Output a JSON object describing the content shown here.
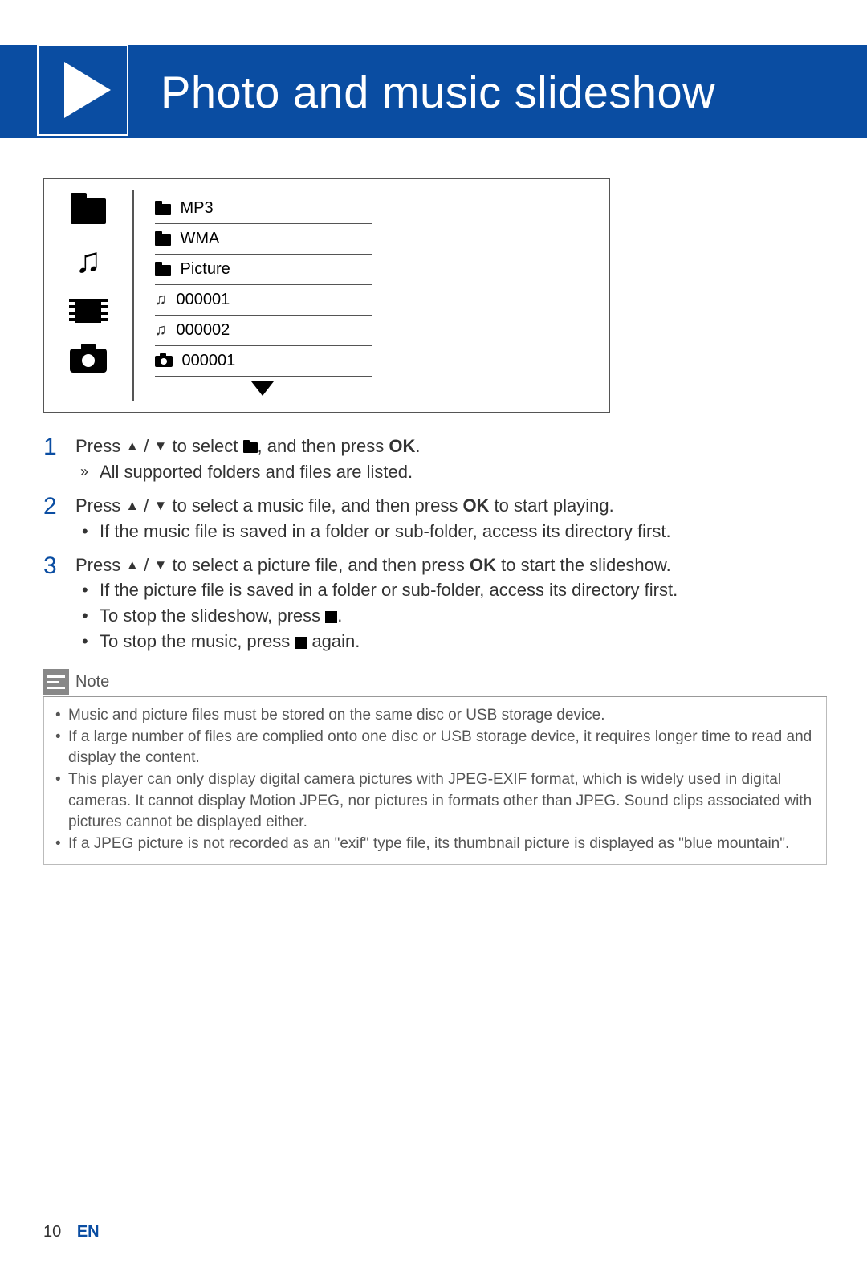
{
  "header": {
    "title": "Photo and music slideshow"
  },
  "diagram": {
    "rows": [
      {
        "icon": "folder",
        "label": "MP3"
      },
      {
        "icon": "folder",
        "label": "WMA"
      },
      {
        "icon": "folder",
        "label": "Picture"
      },
      {
        "icon": "music",
        "label": "000001"
      },
      {
        "icon": "music",
        "label": "000002"
      },
      {
        "icon": "camera",
        "label": "000001"
      }
    ]
  },
  "steps": {
    "s1": {
      "num": "1",
      "line_a": "Press ",
      "line_b": " / ",
      "line_c": " to select ",
      "line_d": ", and then press ",
      "ok": "OK",
      "line_e": ".",
      "sub1": "All supported folders and files are listed."
    },
    "s2": {
      "num": "2",
      "line_a": "Press ",
      "line_b": " / ",
      "line_c": " to select a music file, and then press ",
      "ok": "OK",
      "line_d": " to start playing.",
      "sub1": "If the music file is saved in a folder or sub-folder, access its directory first."
    },
    "s3": {
      "num": "3",
      "line_a": "Press ",
      "line_b": " / ",
      "line_c": " to select a picture file, and then press ",
      "ok": "OK",
      "line_d": " to start the slideshow.",
      "sub1": "If the picture file is saved in a folder or sub-folder, access its directory first.",
      "sub2a": "To stop the slideshow, press ",
      "sub2b": ".",
      "sub3a": "To stop the music, press ",
      "sub3b": " again."
    }
  },
  "note": {
    "label": "Note",
    "n1": "Music and picture files must be stored on the same disc or USB storage device.",
    "n2": "If a large number of files are complied onto one disc or USB storage device, it requires longer time to read and display the content.",
    "n3": "This player can only display digital camera pictures with JPEG-EXIF format, which is widely used in digital cameras. It cannot display Motion JPEG, nor pictures in formats other than JPEG. Sound clips associated with pictures cannot be displayed either.",
    "n4": "If a JPEG picture is not recorded as an \"exif\" type file, its thumbnail picture is displayed as \"blue mountain\"."
  },
  "footer": {
    "page": "10",
    "lang": "EN"
  },
  "colors": {
    "brand": "#0a4da2",
    "text": "#333333",
    "border": "#555555",
    "note": "#888888"
  }
}
